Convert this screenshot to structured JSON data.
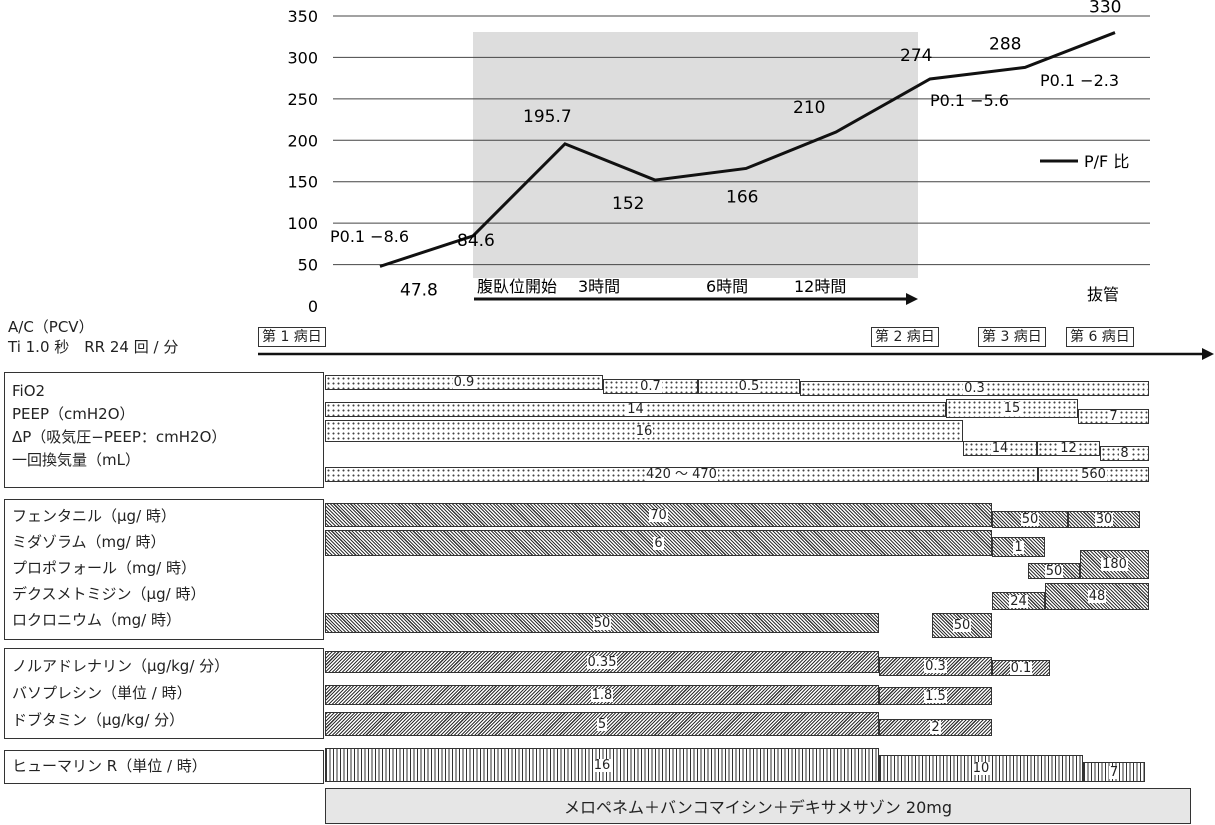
{
  "chart_data": {
    "type": "line",
    "title": "",
    "ylim": [
      0,
      350
    ],
    "yticks": [
      "0",
      "50",
      "100",
      "150",
      "200",
      "250",
      "300",
      "350"
    ],
    "series": [
      {
        "name": "P/F 比",
        "points": [
          {
            "value": 47.8,
            "label": "47.8"
          },
          {
            "value": 84.6,
            "label": "84.6"
          },
          {
            "value": 195.7,
            "label": "195.7"
          },
          {
            "value": 152,
            "label": "152"
          },
          {
            "value": 166,
            "label": "166"
          },
          {
            "value": 210,
            "label": "210"
          },
          {
            "value": 274,
            "label": "274"
          },
          {
            "value": 288,
            "label": "288"
          },
          {
            "value": 330,
            "label": "330"
          }
        ]
      }
    ],
    "legend": {
      "label": "P/F 比",
      "position": "right"
    },
    "annotations": {
      "p01_a": "P0.1 −8.6",
      "p01_b": "P0.1 −5.6",
      "p01_c": "P0.1 −2.3"
    },
    "timeline": {
      "prone_start": "腹臥位開始",
      "h3": "3時間",
      "h6": "6時間",
      "h12": "12時間",
      "extubation": "抜管"
    }
  },
  "vent": {
    "mode": "A/C（PCV）",
    "settings": "Ti 1.0 秒　RR 24 回 / 分"
  },
  "days": {
    "d1": "第 1 病日",
    "d2": "第 2 病日",
    "d3": "第 3 病日",
    "d6": "第 6 病日"
  },
  "params": {
    "fio2_label": "FiO2",
    "peep_label": "PEEP（cmH2O）",
    "dp_label": "ΔP（吸気圧−PEEP：cmH2O）",
    "vt_label": "一回換気量（mL）",
    "fio2": [
      "0.9",
      "0.7",
      "0.5",
      "0.3"
    ],
    "peep": [
      "14",
      "15",
      "7"
    ],
    "dp": [
      "16",
      "14",
      "12",
      "8"
    ],
    "vt": [
      "420 〜 470",
      "560"
    ]
  },
  "sedation": {
    "fentanyl_label": "フェンタニル（μg/ 時）",
    "midazolam_label": "ミダゾラム（mg/ 時）",
    "propofol_label": "プロポフォール（mg/ 時）",
    "dex_label": "デクスメトミジン（μg/ 時）",
    "rocuronium_label": "ロクロニウム（mg/ 時）",
    "fentanyl": [
      "70",
      "50",
      "30"
    ],
    "midazolam": [
      "6",
      "1"
    ],
    "propofol": [
      "50",
      "180"
    ],
    "dex": [
      "24",
      "48"
    ],
    "rocuronium": [
      "50",
      "50"
    ]
  },
  "vaso": {
    "noradrenaline_label": "ノルアドレナリン（μg/kg/ 分）",
    "vasopressin_label": "バソプレシン（単位 / 時）",
    "dobutamine_label": "ドブタミン（μg/kg/ 分）",
    "noradrenaline": [
      "0.35",
      "0.3",
      "0.1"
    ],
    "vasopressin": [
      "1.8",
      "1.5"
    ],
    "dobutamine": [
      "5",
      "2"
    ]
  },
  "insulin": {
    "label": "ヒューマリン R（単位 / 時）",
    "values": [
      "16",
      "10",
      "7"
    ]
  },
  "antibiotics": "メロペネム＋バンコマイシン＋デキサメサゾン 20mg"
}
